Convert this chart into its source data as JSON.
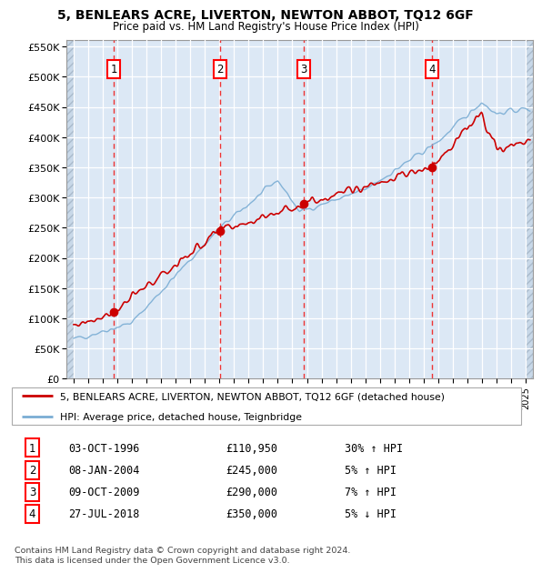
{
  "title": "5, BENLEARS ACRE, LIVERTON, NEWTON ABBOT, TQ12 6GF",
  "subtitle": "Price paid vs. HM Land Registry's House Price Index (HPI)",
  "ylim": [
    0,
    560000
  ],
  "yticks": [
    0,
    50000,
    100000,
    150000,
    200000,
    250000,
    300000,
    350000,
    400000,
    450000,
    500000,
    550000
  ],
  "xlim_start": 1993.5,
  "xlim_end": 2025.5,
  "transactions": [
    {
      "num": 1,
      "date": "03-OCT-1996",
      "price": 110950,
      "year": 1996.75,
      "pct": "30%",
      "dir": "↑"
    },
    {
      "num": 2,
      "date": "08-JAN-2004",
      "price": 245000,
      "year": 2004.03,
      "pct": "5%",
      "dir": "↑"
    },
    {
      "num": 3,
      "date": "09-OCT-2009",
      "price": 290000,
      "year": 2009.77,
      "pct": "7%",
      "dir": "↑"
    },
    {
      "num": 4,
      "date": "27-JUL-2018",
      "price": 350000,
      "year": 2018.57,
      "pct": "5%",
      "dir": "↓"
    }
  ],
  "legend_label_red": "5, BENLEARS ACRE, LIVERTON, NEWTON ABBOT, TQ12 6GF (detached house)",
  "legend_label_blue": "HPI: Average price, detached house, Teignbridge",
  "footer": "Contains HM Land Registry data © Crown copyright and database right 2024.\nThis data is licensed under the Open Government Licence v3.0.",
  "hpi_color": "#7aadd4",
  "price_color": "#cc0000",
  "background_plot": "#dce8f5",
  "background_hatch": "#c8d8e8",
  "grid_color": "#ffffff",
  "vline_color": "#ee3333"
}
